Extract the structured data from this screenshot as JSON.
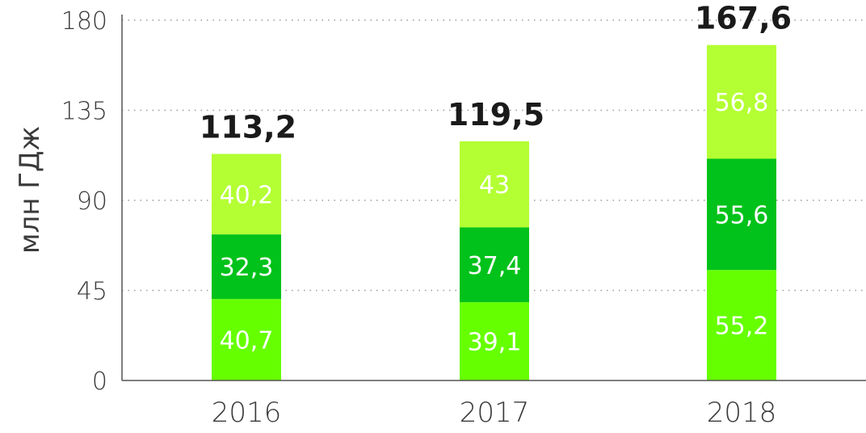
{
  "chart_data": {
    "type": "bar",
    "stacked": true,
    "ylabel": "млн ГДж",
    "ylim": [
      0,
      180
    ],
    "yticks": [
      0,
      45,
      90,
      135,
      180
    ],
    "categories": [
      "2016",
      "2017",
      "2018"
    ],
    "series": [
      {
        "values": [
          40.7,
          39.1,
          55.2
        ],
        "labels": [
          "40,7",
          "39,1",
          "55,2"
        ],
        "color": "#66ff00"
      },
      {
        "values": [
          32.3,
          37.4,
          55.6
        ],
        "labels": [
          "32,3",
          "37,4",
          "55,6"
        ],
        "color": "#00c21a"
      },
      {
        "values": [
          40.2,
          43,
          56.8
        ],
        "labels": [
          "40,2",
          "43",
          "56,8"
        ],
        "color": "#b3ff33"
      }
    ],
    "totals": [
      "113,2",
      "119,5",
      "167,6"
    ],
    "grid": "dotted horizontal",
    "legend": "none"
  }
}
